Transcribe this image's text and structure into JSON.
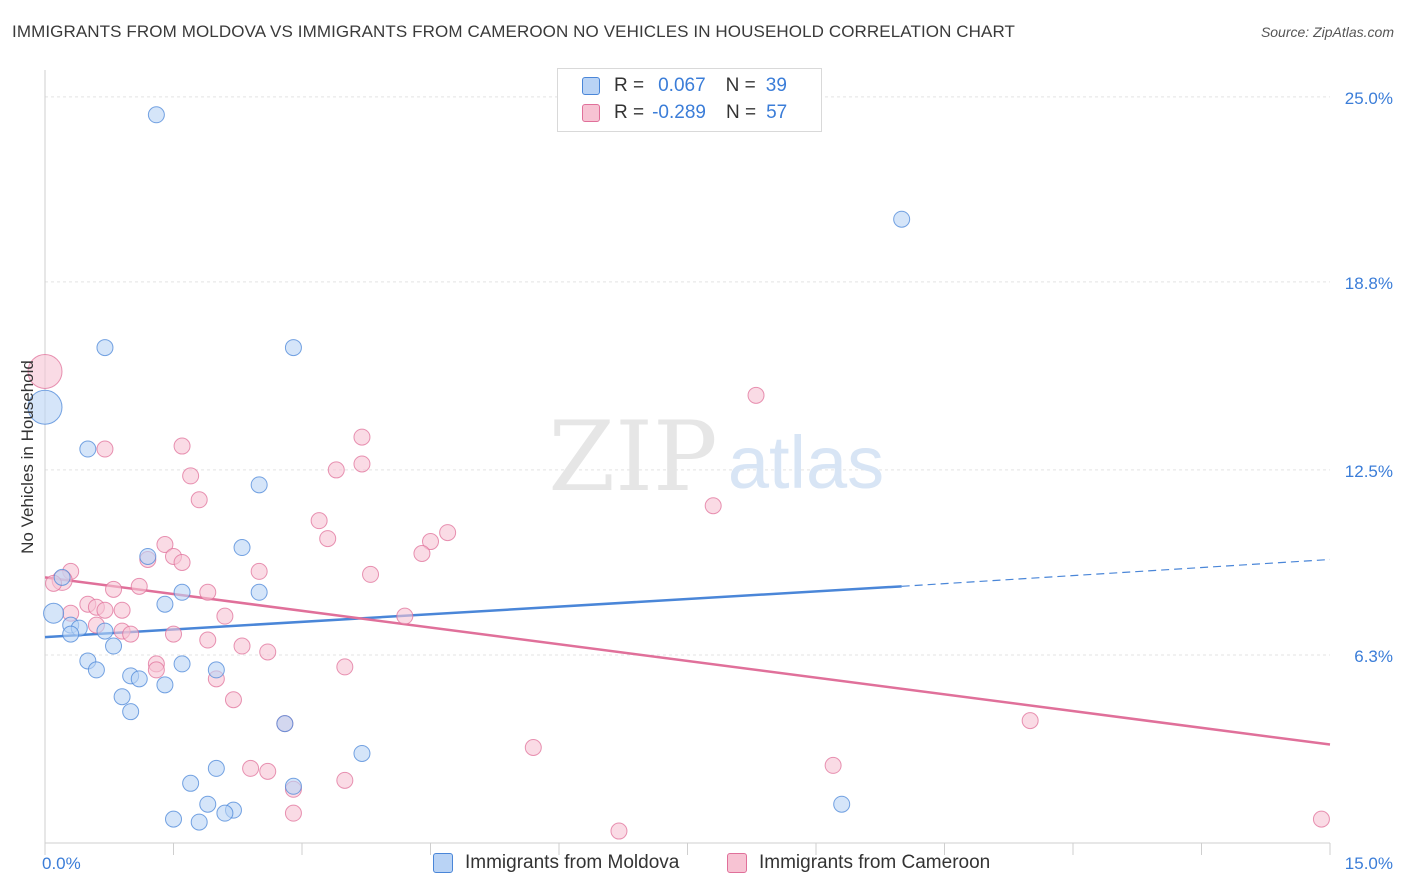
{
  "title": "IMMIGRANTS FROM MOLDOVA VS IMMIGRANTS FROM CAMEROON NO VEHICLES IN HOUSEHOLD CORRELATION CHART",
  "source": "Source: ZipAtlas.com",
  "watermark": {
    "zip": "ZIP",
    "atlas": "atlas"
  },
  "legend": {
    "rows": [
      {
        "r_label": "R =",
        "r_value": "0.067",
        "n_label": "N =",
        "n_value": "39"
      },
      {
        "r_label": "R =",
        "r_value": "-0.289",
        "n_label": "N =",
        "n_value": "57"
      }
    ]
  },
  "chart_data": {
    "type": "scatter",
    "xlabel": "",
    "ylabel": "No Vehicles in Household",
    "xlim": [
      0,
      15
    ],
    "ylim": [
      0,
      25.9
    ],
    "x_tick_labels": [
      "0.0%",
      "15.0%"
    ],
    "y_ticks": [
      6.3,
      12.5,
      18.8,
      25.0
    ],
    "y_tick_labels": [
      "6.3%",
      "12.5%",
      "18.8%",
      "25.0%"
    ],
    "grid": true,
    "colors": {
      "moldova": "#4a86d8",
      "cameroon": "#e0709a",
      "moldova_fill": "#b9d3f5",
      "cameroon_fill": "#f7c3d3"
    },
    "series": [
      {
        "name": "Immigrants from Moldova",
        "color": "#4a86d8",
        "trend": {
          "x0": 0.0,
          "y0": 6.9,
          "x1": 10.0,
          "y1": 8.6,
          "dash_to_x": 15.0,
          "dash_to_y": 9.5
        },
        "points": [
          [
            1.3,
            24.4
          ],
          [
            10.0,
            20.9
          ],
          [
            0.7,
            16.6
          ],
          [
            2.9,
            16.6
          ],
          [
            0.0,
            14.6,
            "big"
          ],
          [
            0.5,
            13.2
          ],
          [
            2.5,
            12.0
          ],
          [
            2.3,
            9.9
          ],
          [
            1.2,
            9.6
          ],
          [
            0.2,
            8.9
          ],
          [
            1.6,
            8.4
          ],
          [
            2.5,
            8.4
          ],
          [
            1.4,
            8.0
          ],
          [
            0.1,
            7.7,
            "mid"
          ],
          [
            0.3,
            7.3
          ],
          [
            0.4,
            7.2
          ],
          [
            0.7,
            7.1
          ],
          [
            0.3,
            7.0
          ],
          [
            0.8,
            6.6
          ],
          [
            0.5,
            6.1
          ],
          [
            1.6,
            6.0
          ],
          [
            2.0,
            5.8
          ],
          [
            0.6,
            5.8
          ],
          [
            1.0,
            5.6
          ],
          [
            1.1,
            5.5
          ],
          [
            1.4,
            5.3
          ],
          [
            0.9,
            4.9
          ],
          [
            1.0,
            4.4
          ],
          [
            2.8,
            4.0
          ],
          [
            3.7,
            3.0
          ],
          [
            2.0,
            2.5
          ],
          [
            1.7,
            2.0
          ],
          [
            2.9,
            1.9
          ],
          [
            1.9,
            1.3
          ],
          [
            2.2,
            1.1
          ],
          [
            2.1,
            1.0
          ],
          [
            1.5,
            0.8
          ],
          [
            1.8,
            0.7
          ],
          [
            9.3,
            1.3
          ]
        ]
      },
      {
        "name": "Immigrants from Cameroon",
        "color": "#e0709a",
        "trend": {
          "x0": 0.0,
          "y0": 8.9,
          "x1": 15.0,
          "y1": 3.3
        },
        "points": [
          [
            0.0,
            15.8,
            "big"
          ],
          [
            8.3,
            15.0
          ],
          [
            3.7,
            13.6
          ],
          [
            0.7,
            13.2
          ],
          [
            1.6,
            13.3
          ],
          [
            1.7,
            12.3
          ],
          [
            3.4,
            12.5
          ],
          [
            3.7,
            12.7
          ],
          [
            1.8,
            11.5
          ],
          [
            7.8,
            11.3
          ],
          [
            3.2,
            10.8
          ],
          [
            4.7,
            10.4
          ],
          [
            3.3,
            10.2
          ],
          [
            4.5,
            10.1
          ],
          [
            1.4,
            10.0
          ],
          [
            4.4,
            9.7
          ],
          [
            1.5,
            9.6
          ],
          [
            1.2,
            9.5
          ],
          [
            1.6,
            9.4
          ],
          [
            0.3,
            9.1
          ],
          [
            2.5,
            9.1
          ],
          [
            3.8,
            9.0
          ],
          [
            0.2,
            8.8,
            "mid"
          ],
          [
            0.1,
            8.7
          ],
          [
            1.1,
            8.6
          ],
          [
            0.8,
            8.5
          ],
          [
            1.9,
            8.4
          ],
          [
            0.5,
            8.0
          ],
          [
            0.6,
            7.9
          ],
          [
            0.7,
            7.8
          ],
          [
            0.9,
            7.8
          ],
          [
            0.3,
            7.7
          ],
          [
            2.1,
            7.6
          ],
          [
            4.2,
            7.6
          ],
          [
            0.9,
            7.1
          ],
          [
            1.0,
            7.0
          ],
          [
            1.5,
            7.0
          ],
          [
            1.9,
            6.8
          ],
          [
            2.3,
            6.6
          ],
          [
            2.6,
            6.4
          ],
          [
            1.3,
            6.0
          ],
          [
            1.3,
            5.8
          ],
          [
            3.5,
            5.9
          ],
          [
            2.0,
            5.5
          ],
          [
            2.2,
            4.8
          ],
          [
            2.8,
            4.0
          ],
          [
            11.5,
            4.1
          ],
          [
            5.7,
            3.2
          ],
          [
            9.2,
            2.6
          ],
          [
            2.4,
            2.5
          ],
          [
            2.6,
            2.4
          ],
          [
            3.5,
            2.1
          ],
          [
            2.9,
            1.8
          ],
          [
            2.9,
            1.0
          ],
          [
            6.7,
            0.4
          ],
          [
            14.9,
            0.8
          ],
          [
            0.6,
            7.3
          ]
        ]
      }
    ]
  },
  "bottom_legend": [
    {
      "label": "Immigrants from Moldova"
    },
    {
      "label": "Immigrants from Cameroon"
    }
  ]
}
